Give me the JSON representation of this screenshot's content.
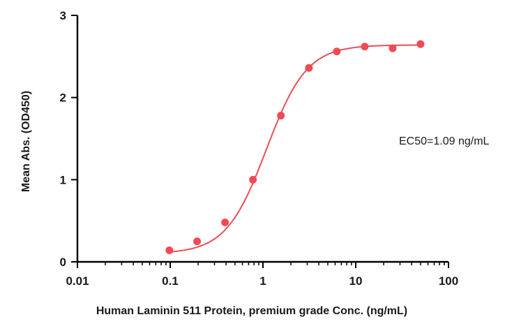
{
  "chart_data": {
    "type": "scatter",
    "xlabel": "Human Laminin 511 Protein, premium grade Conc. (ng/mL)",
    "ylabel": "Mean Abs. (OD450)",
    "xscale": "log",
    "xlim": [
      0.01,
      100
    ],
    "ylim": [
      0,
      3
    ],
    "x_ticks": [
      "0.01",
      "0.1",
      "1",
      "10",
      "100"
    ],
    "y_ticks": [
      "0",
      "1",
      "2",
      "3"
    ],
    "grid": false,
    "annotation": "EC50=1.09 ng/mL",
    "series": [
      {
        "color": "#f04b55",
        "points": [
          {
            "x": 0.098,
            "y": 0.14
          },
          {
            "x": 0.195,
            "y": 0.25
          },
          {
            "x": 0.39,
            "y": 0.48
          },
          {
            "x": 0.78,
            "y": 1.0
          },
          {
            "x": 1.56,
            "y": 1.78
          },
          {
            "x": 3.13,
            "y": 2.36
          },
          {
            "x": 6.25,
            "y": 2.56
          },
          {
            "x": 12.5,
            "y": 2.62
          },
          {
            "x": 25,
            "y": 2.6
          },
          {
            "x": 50,
            "y": 2.65
          }
        ],
        "fit": {
          "model": "4PL",
          "bottom": 0.1,
          "top": 2.64,
          "ec50": 1.09,
          "hill": 2.0
        }
      }
    ]
  }
}
